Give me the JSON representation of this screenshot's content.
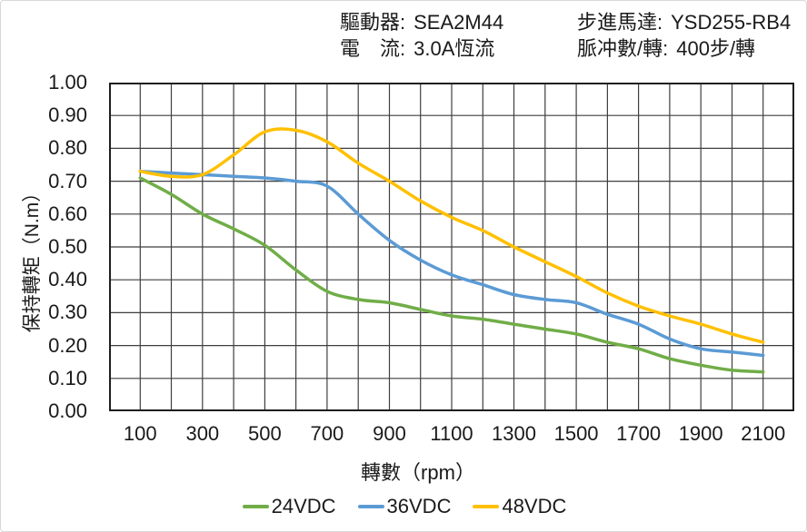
{
  "header": {
    "col1": [
      {
        "label": "驅動器:",
        "value": "SEA2M44"
      },
      {
        "label": "電　流:",
        "value": "3.0A恆流"
      }
    ],
    "col2": [
      {
        "label": "步進馬達:",
        "value": "YSD255-RB4"
      },
      {
        "label": "脈冲數/轉:",
        "value": "400步/轉"
      }
    ]
  },
  "chart_data": {
    "type": "line",
    "xlabel": "轉數（rpm）",
    "ylabel": "保持轉矩（N.m）",
    "xlim": [
      0,
      2200
    ],
    "ylim": [
      0,
      1.0
    ],
    "grid": true,
    "x_gridline_step": 100,
    "y_gridline_step": 0.1,
    "legend_position": "bottom",
    "x_tick_labels": [
      "100",
      "300",
      "500",
      "700",
      "900",
      "1100",
      "1300",
      "1500",
      "1700",
      "1900",
      "2100"
    ],
    "y_tick_labels": [
      "0.00",
      "0.10",
      "0.20",
      "0.30",
      "0.40",
      "0.50",
      "0.60",
      "0.70",
      "0.80",
      "0.90",
      "1.00"
    ],
    "x": [
      100,
      200,
      300,
      400,
      500,
      600,
      700,
      800,
      900,
      1000,
      1100,
      1200,
      1300,
      1400,
      1500,
      1600,
      1700,
      1800,
      1900,
      2000,
      2100
    ],
    "series": [
      {
        "name": "24VDC",
        "color": "#70AD47",
        "values": [
          0.71,
          0.66,
          0.6,
          0.555,
          0.505,
          0.43,
          0.365,
          0.34,
          0.33,
          0.31,
          0.29,
          0.28,
          0.265,
          0.25,
          0.235,
          0.21,
          0.19,
          0.16,
          0.14,
          0.125,
          0.12
        ]
      },
      {
        "name": "36VDC",
        "color": "#5B9BD5",
        "values": [
          0.73,
          0.725,
          0.72,
          0.715,
          0.71,
          0.7,
          0.685,
          0.6,
          0.52,
          0.46,
          0.415,
          0.385,
          0.355,
          0.34,
          0.33,
          0.295,
          0.265,
          0.22,
          0.19,
          0.18,
          0.17
        ]
      },
      {
        "name": "48VDC",
        "color": "#FFC000",
        "values": [
          0.73,
          0.715,
          0.72,
          0.78,
          0.85,
          0.855,
          0.82,
          0.755,
          0.7,
          0.64,
          0.59,
          0.55,
          0.5,
          0.455,
          0.41,
          0.36,
          0.32,
          0.29,
          0.265,
          0.235,
          0.21
        ]
      }
    ],
    "colors": {
      "grid": "#3f3f3f",
      "border": "#1f1f1f",
      "text": "#1a1a1a"
    }
  }
}
